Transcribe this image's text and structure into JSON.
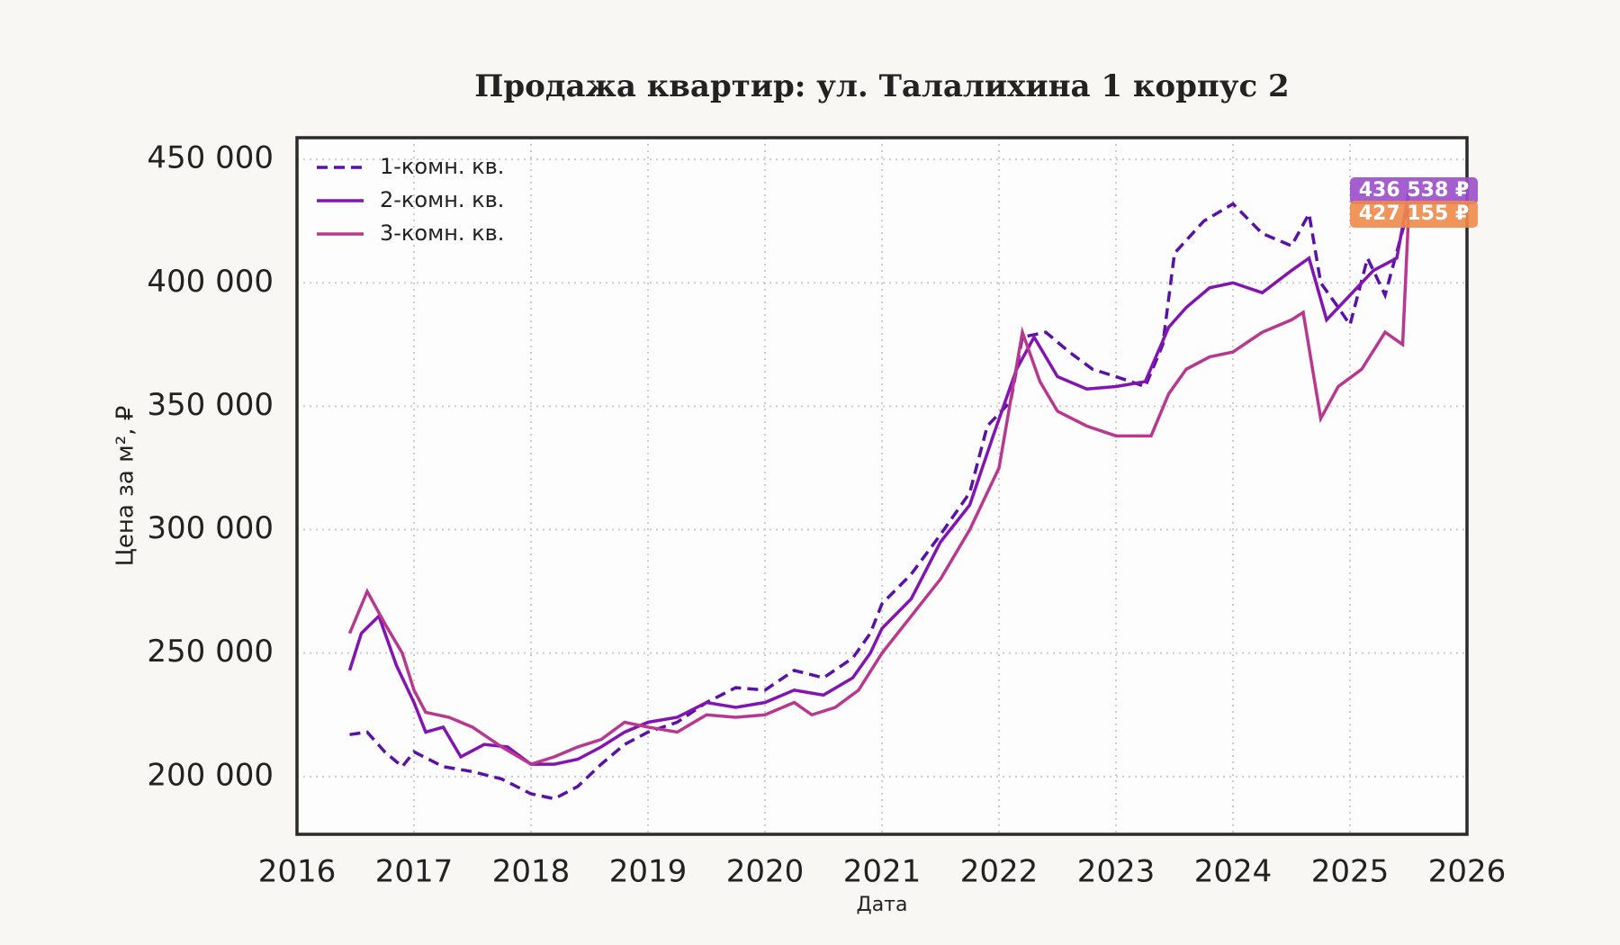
{
  "chart_data": {
    "type": "line",
    "title": "Продажа квартир: ул. Талалихина 1 корпус 2",
    "x_label": "Дата",
    "y_label": "Цена за м², ₽",
    "xlim": [
      2016,
      2026
    ],
    "xticks": [
      2016,
      2017,
      2018,
      2019,
      2020,
      2021,
      2022,
      2023,
      2024,
      2025,
      2026
    ],
    "ylim": [
      176600,
      458800
    ],
    "yticks": [
      {
        "value": 200000,
        "label": "200 000"
      },
      {
        "value": 250000,
        "label": "250 000"
      },
      {
        "value": 300000,
        "label": "300 000"
      },
      {
        "value": 350000,
        "label": "350 000"
      },
      {
        "value": 400000,
        "label": "400 000"
      },
      {
        "value": 450000,
        "label": "450 000"
      }
    ],
    "grid": true,
    "legend": "upper-left",
    "series": [
      {
        "name": "1-комн. кв.",
        "color": "#5a12a6",
        "style": "dashed",
        "x": [
          2016.45,
          2016.6,
          2016.75,
          2016.9,
          2017.0,
          2017.25,
          2017.5,
          2017.75,
          2018.0,
          2018.2,
          2018.4,
          2018.6,
          2018.8,
          2019.0,
          2019.25,
          2019.5,
          2019.75,
          2020.0,
          2020.25,
          2020.5,
          2020.75,
          2020.9,
          2021.0,
          2021.25,
          2021.5,
          2021.75,
          2021.9,
          2022.1,
          2022.2,
          2022.4,
          2022.6,
          2022.8,
          2023.0,
          2023.25,
          2023.4,
          2023.5,
          2023.75,
          2024.0,
          2024.25,
          2024.5,
          2024.65,
          2024.75,
          2024.9,
          2025.0,
          2025.15,
          2025.3,
          2025.5
        ],
        "values": [
          217000,
          218000,
          210000,
          204000,
          210000,
          204000,
          202000,
          199000,
          193000,
          191000,
          196000,
          205000,
          213000,
          218000,
          222000,
          230000,
          236000,
          235000,
          243000,
          240000,
          248000,
          258000,
          270000,
          282000,
          298000,
          315000,
          342000,
          352000,
          378000,
          380000,
          372000,
          365000,
          362000,
          358000,
          375000,
          412000,
          425000,
          432000,
          420000,
          415000,
          428000,
          400000,
          390000,
          383000,
          410000,
          395000,
          430000
        ]
      },
      {
        "name": "2-комн. кв.",
        "color": "#8214b4",
        "style": "solid",
        "x": [
          2016.45,
          2016.55,
          2016.7,
          2016.85,
          2017.0,
          2017.1,
          2017.25,
          2017.4,
          2017.6,
          2017.8,
          2018.0,
          2018.2,
          2018.4,
          2018.6,
          2018.8,
          2019.0,
          2019.25,
          2019.5,
          2019.75,
          2020.0,
          2020.25,
          2020.5,
          2020.75,
          2020.9,
          2021.0,
          2021.25,
          2021.5,
          2021.75,
          2021.95,
          2022.15,
          2022.3,
          2022.5,
          2022.75,
          2023.0,
          2023.25,
          2023.45,
          2023.6,
          2023.8,
          2024.0,
          2024.25,
          2024.5,
          2024.65,
          2024.8,
          2025.0,
          2025.2,
          2025.4,
          2025.5
        ],
        "values": [
          243000,
          258000,
          265000,
          245000,
          230000,
          218000,
          220000,
          208000,
          213000,
          212000,
          205000,
          205000,
          207000,
          212000,
          218000,
          222000,
          224000,
          230000,
          228000,
          230000,
          235000,
          233000,
          240000,
          250000,
          260000,
          272000,
          295000,
          310000,
          338000,
          365000,
          378000,
          362000,
          357000,
          358000,
          360000,
          382000,
          390000,
          398000,
          400000,
          396000,
          405000,
          410000,
          385000,
          395000,
          405000,
          410000,
          436000
        ]
      },
      {
        "name": "3-комн. кв.",
        "color": "#b8388f",
        "style": "solid",
        "x": [
          2016.45,
          2016.6,
          2016.75,
          2016.9,
          2017.0,
          2017.1,
          2017.3,
          2017.5,
          2017.75,
          2018.0,
          2018.2,
          2018.4,
          2018.6,
          2018.8,
          2019.0,
          2019.25,
          2019.5,
          2019.75,
          2020.0,
          2020.25,
          2020.4,
          2020.6,
          2020.8,
          2021.0,
          2021.25,
          2021.5,
          2021.75,
          2022.0,
          2022.2,
          2022.35,
          2022.5,
          2022.75,
          2023.0,
          2023.3,
          2023.45,
          2023.6,
          2023.8,
          2024.0,
          2024.25,
          2024.5,
          2024.6,
          2024.75,
          2024.9,
          2025.1,
          2025.3,
          2025.45,
          2025.5
        ],
        "values": [
          258000,
          275000,
          262000,
          250000,
          235000,
          226000,
          224000,
          220000,
          212000,
          205000,
          208000,
          212000,
          215000,
          222000,
          220000,
          218000,
          225000,
          224000,
          225000,
          230000,
          225000,
          228000,
          235000,
          250000,
          265000,
          280000,
          300000,
          325000,
          380000,
          360000,
          348000,
          342000,
          338000,
          338000,
          355000,
          365000,
          370000,
          372000,
          380000,
          385000,
          388000,
          345000,
          358000,
          365000,
          380000,
          375000,
          427000
        ]
      }
    ],
    "annotations": [
      {
        "text": "436 538 ₽",
        "color": "#9b4dca"
      },
      {
        "text": "427 155 ₽",
        "color": "#ee8a4a"
      }
    ]
  }
}
